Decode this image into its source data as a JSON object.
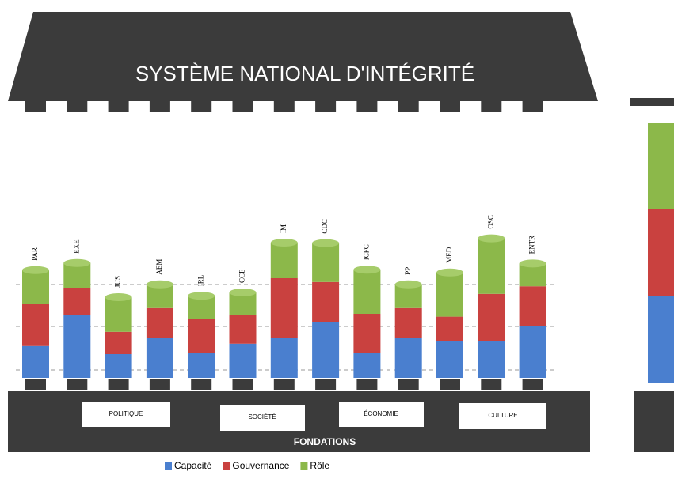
{
  "chart_data": {
    "type": "bar",
    "stacked": true,
    "title": "SYSTÈME NATIONAL D'INTÉGRITÉ",
    "categories": [
      "PAR",
      "EXE",
      "JUS",
      "AEM",
      "IRL",
      "CCE",
      "IM",
      "CDC",
      "ICFC",
      "PP",
      "MED",
      "OSC",
      "ENTR"
    ],
    "series": [
      {
        "name": "Capacité",
        "color": "#4a7fcf",
        "values": [
          67,
          133,
          50,
          85,
          53,
          72,
          85,
          117,
          52,
          85,
          77,
          77,
          110
        ]
      },
      {
        "name": "Gouvernance",
        "color": "#c9413f",
        "values": [
          88,
          57,
          47,
          62,
          72,
          60,
          125,
          85,
          83,
          62,
          52,
          100,
          83
        ]
      },
      {
        "name": "Rôle",
        "color": "#8cb84a",
        "values": [
          72,
          52,
          73,
          50,
          48,
          48,
          75,
          82,
          93,
          50,
          93,
          117,
          48
        ]
      }
    ],
    "ylim": [
      0,
      300
    ],
    "foundation": {
      "title": "FONDATIONS",
      "sections": [
        "POLITIQUE",
        "SOCIÉTÉ",
        "ÉCONOMIE",
        "CULTURE"
      ]
    },
    "legend_position": "bottom"
  }
}
